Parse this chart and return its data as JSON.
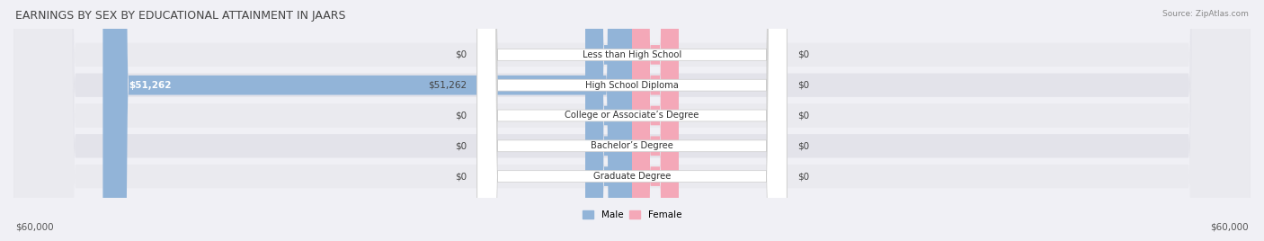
{
  "title": "EARNINGS BY SEX BY EDUCATIONAL ATTAINMENT IN JAARS",
  "source": "Source: ZipAtlas.com",
  "categories": [
    "Less than High School",
    "High School Diploma",
    "College or Associate’s Degree",
    "Bachelor’s Degree",
    "Graduate Degree"
  ],
  "male_values": [
    0,
    51262,
    0,
    0,
    0
  ],
  "female_values": [
    0,
    0,
    0,
    0,
    0
  ],
  "max_value": 60000,
  "male_color": "#92b4d8",
  "female_color": "#f4a8b8",
  "male_label": "Male",
  "female_label": "Female",
  "axis_label_left": "$60,000",
  "axis_label_right": "$60,000",
  "title_fontsize": 9,
  "label_fontsize": 7.5,
  "bg_color": "#f0f0f5"
}
